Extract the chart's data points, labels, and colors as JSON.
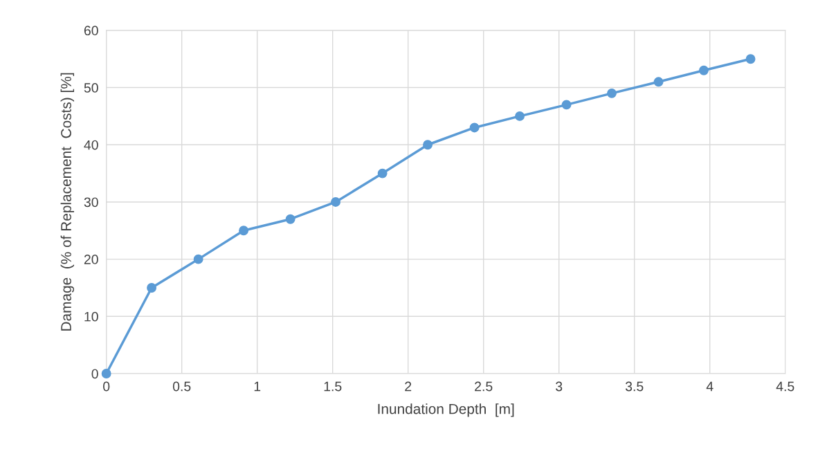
{
  "chart_data": {
    "type": "line",
    "xlabel": "Inundation Depth  [m]",
    "ylabel": "Damage  (% of Replacement  Costs) [%]",
    "x": [
      0,
      0.3,
      0.61,
      0.91,
      1.22,
      1.52,
      1.83,
      2.13,
      2.44,
      2.74,
      3.05,
      3.35,
      3.66,
      3.96,
      4.27
    ],
    "series": [
      {
        "color": "#5b9bd5",
        "values": [
          0,
          15,
          20,
          25,
          27,
          30,
          35,
          40,
          43,
          45,
          47,
          49,
          51,
          53,
          55
        ]
      }
    ],
    "xlim": [
      0,
      4.5
    ],
    "xticks": [
      0,
      0.5,
      1,
      1.5,
      2,
      2.5,
      3,
      3.5,
      4,
      4.5
    ],
    "ylim": [
      0,
      60
    ],
    "yticks": [
      0,
      10,
      20,
      30,
      40,
      50,
      60
    ],
    "grid": true,
    "marker": "circle",
    "line_style": "solid",
    "legend": false
  }
}
